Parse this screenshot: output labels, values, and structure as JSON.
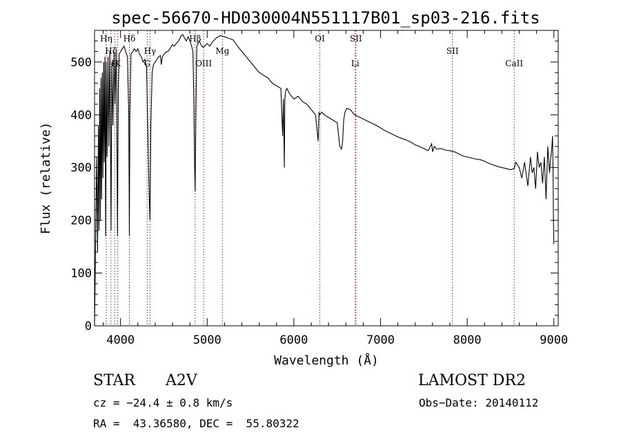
{
  "chart_data": {
    "type": "line",
    "title": "spec-56670-HD030004N551117B01_sp03-216.fits",
    "xlabel": "Wavelength (Å)",
    "ylabel": "Flux (relative)",
    "xlim": [
      3700,
      9050
    ],
    "ylim": [
      0,
      560
    ],
    "xticks": [
      4000,
      5000,
      6000,
      7000,
      8000,
      9000
    ],
    "xtick_labels": [
      "4000",
      "5000",
      "6000",
      "7000",
      "8000",
      "9000"
    ],
    "yticks": [
      0,
      100,
      200,
      300,
      400,
      500
    ],
    "ytick_labels": [
      "0",
      "100",
      "200",
      "300",
      "400",
      "500"
    ],
    "grid": false,
    "legend": "none",
    "series": [
      {
        "x": [
          3700,
          3712,
          3725,
          3735,
          3745,
          3752,
          3760,
          3768,
          3775,
          3782,
          3790,
          3797,
          3805,
          3812,
          3820,
          3828,
          3835,
          3845,
          3855,
          3865,
          3875,
          3885,
          3890,
          3900,
          3912,
          3925,
          3935,
          3950,
          3960,
          3965,
          3970,
          3975,
          3985,
          4000,
          4020,
          4040,
          4060,
          4080,
          4095,
          4102,
          4108,
          4120,
          4140,
          4160,
          4180,
          4200,
          4220,
          4240,
          4260,
          4280,
          4300,
          4330,
          4340,
          4350,
          4365,
          4380,
          4400,
          4420,
          4440,
          4460,
          4471,
          4480,
          4500,
          4520,
          4540,
          4560,
          4580,
          4600,
          4620,
          4640,
          4660,
          4680,
          4700,
          4720,
          4740,
          4760,
          4780,
          4800,
          4820,
          4835,
          4845,
          4855,
          4861,
          4868,
          4880,
          4895,
          4910,
          4930,
          4950,
          4970,
          5000,
          5030,
          5060,
          5100,
          5150,
          5200,
          5250,
          5300,
          5350,
          5400,
          5450,
          5500,
          5550,
          5600,
          5650,
          5700,
          5750,
          5800,
          5850,
          5870,
          5880,
          5890,
          5896,
          5905,
          5920,
          5950,
          6000,
          6050,
          6100,
          6150,
          6200,
          6250,
          6280,
          6290,
          6300,
          6320,
          6350,
          6400,
          6450,
          6500,
          6530,
          6550,
          6563,
          6575,
          6590,
          6610,
          6650,
          6700,
          6750,
          6800,
          6850,
          6900,
          6950,
          7000,
          7050,
          7100,
          7150,
          7200,
          7250,
          7300,
          7350,
          7400,
          7450,
          7500,
          7550,
          7590,
          7600,
          7620,
          7650,
          7700,
          7750,
          7800,
          7850,
          7900,
          7950,
          8000,
          8050,
          8100,
          8150,
          8200,
          8250,
          8300,
          8350,
          8400,
          8450,
          8500,
          8542,
          8560,
          8600,
          8630,
          8662,
          8700,
          8730,
          8750,
          8770,
          8790,
          8810,
          8830,
          8850,
          8870,
          8890,
          8910,
          8930,
          8950,
          8965,
          8975,
          8985,
          8990,
          8995,
          9000
        ],
        "values": [
          0,
          150,
          320,
          140,
          380,
          180,
          450,
          200,
          470,
          240,
          480,
          280,
          500,
          310,
          510,
          170,
          500,
          320,
          510,
          340,
          520,
          350,
          180,
          500,
          380,
          520,
          420,
          525,
          300,
          170,
          330,
          450,
          515,
          520,
          525,
          530,
          520,
          510,
          400,
          170,
          400,
          515,
          520,
          525,
          520,
          525,
          515,
          510,
          500,
          505,
          490,
          250,
          200,
          380,
          480,
          495,
          500,
          505,
          510,
          512,
          495,
          508,
          515,
          518,
          520,
          522,
          528,
          533,
          530,
          535,
          538,
          543,
          550,
          552,
          545,
          540,
          548,
          540,
          530,
          520,
          440,
          300,
          255,
          380,
          530,
          535,
          540,
          532,
          528,
          530,
          535,
          530,
          538,
          545,
          550,
          548,
          545,
          542,
          530,
          520,
          510,
          500,
          490,
          480,
          475,
          470,
          460,
          455,
          450,
          360,
          430,
          300,
          430,
          445,
          450,
          440,
          430,
          435,
          425,
          420,
          410,
          400,
          350,
          405,
          400,
          405,
          400,
          395,
          390,
          385,
          340,
          335,
          350,
          390,
          405,
          412,
          410,
          400,
          396,
          392,
          388,
          384,
          380,
          375,
          370,
          366,
          362,
          358,
          355,
          352,
          348,
          343,
          340,
          336,
          332,
          345,
          330,
          340,
          335,
          336,
          333,
          332,
          330,
          326,
          322,
          320,
          318,
          316,
          315,
          312,
          308,
          305,
          302,
          300,
          298,
          296,
          298,
          310,
          300,
          280,
          310,
          265,
          320,
          290,
          300,
          260,
          330,
          300,
          310,
          270,
          320,
          240,
          340,
          290,
          320,
          335,
          360,
          300,
          200,
          155
        ]
      }
    ],
    "line_markers": [
      {
        "label": "Hη",
        "x": 3835,
        "row": 1
      },
      {
        "label": "Hζ",
        "x": 3889,
        "row": 2
      },
      {
        "label": "H",
        "x": 3933,
        "row": 3
      },
      {
        "label": "K",
        "x": 3968,
        "row": 3
      },
      {
        "label": "Hδ",
        "x": 4102,
        "row": 1
      },
      {
        "label": "G",
        "x": 4307,
        "row": 3
      },
      {
        "label": "Hγ",
        "x": 4340,
        "row": 2
      },
      {
        "label": "Hβ",
        "x": 4861,
        "row": 1
      },
      {
        "label": "OIII",
        "x": 4959,
        "row": 3
      },
      {
        "label": "Mg",
        "x": 5175,
        "row": 2
      },
      {
        "label": "OI",
        "x": 6300,
        "row": 1
      },
      {
        "label": "SII",
        "x": 6716,
        "row": 1
      },
      {
        "label": "Li",
        "x": 6708,
        "row": 3
      },
      {
        "label": "SII",
        "x": 7830,
        "row": 2
      },
      {
        "label": "CaII",
        "x": 8542,
        "row": 3
      }
    ]
  },
  "info": {
    "object_type": "STAR",
    "spectral_class": "A2V",
    "survey": "LAMOST DR2",
    "cz": "cz = −24.4 ± 0.8 km/s",
    "obs_date": "Obs−Date: 20140112",
    "radec": "RA =  43.36580, DEC =  55.80322"
  }
}
